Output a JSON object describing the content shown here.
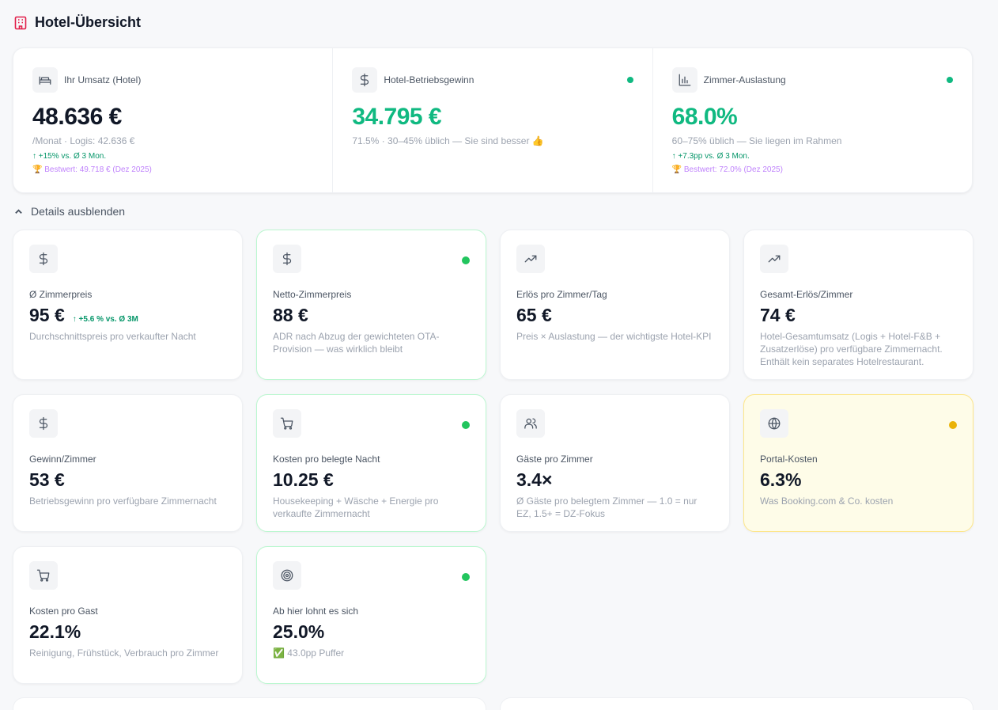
{
  "header": {
    "title": "Hotel-Übersicht",
    "icon": "hotel-icon"
  },
  "top": [
    {
      "label": "Ihr Umsatz (Hotel)",
      "value": "48.636 €",
      "sub": "/Monat · Logis: 42.636 €",
      "trend": "↑ +15% vs. Ø 3 Mon.",
      "best": "🏆 Bestwert: 49.718 € (Dez 2025)",
      "icon": "bed-icon"
    },
    {
      "label": "Hotel-Betriebsgewinn",
      "value": "34.795 €",
      "sub": "71.5% · 30–45% üblich — Sie sind besser 👍",
      "icon": "dollar-icon"
    },
    {
      "label": "Zimmer-Auslastung",
      "value": "68.0%",
      "sub": "60–75% üblich — Sie liegen im Rahmen",
      "trend": "↑ +7.3pp vs. Ø 3 Mon.",
      "best": "🏆 Bestwert: 72.0% (Dez 2025)",
      "icon": "bar-chart-icon"
    }
  ],
  "toggle": {
    "label": "Details ausblenden"
  },
  "cards": [
    {
      "label": "Ø Zimmerpreis",
      "value": "95 €",
      "trend": "↑ +5.6 % vs. Ø 3M",
      "desc": "Durchschnittspreis pro verkaufter Nacht",
      "icon": "dollar-icon"
    },
    {
      "label": "Netto-Zimmerpreis",
      "value": "88 €",
      "desc": "ADR nach Abzug der gewichteten OTA-Provision — was wirklich bleibt",
      "icon": "dollar-icon"
    },
    {
      "label": "Erlös pro Zimmer/Tag",
      "value": "65 €",
      "desc": "Preis × Auslastung — der wichtigste Hotel-KPI",
      "icon": "trending-up-icon"
    },
    {
      "label": "Gesamt-Erlös/Zimmer",
      "value": "74 €",
      "desc": "Hotel-Gesamtumsatz (Logis + Hotel-F&B + Zusatzerlöse) pro verfügbare Zimmernacht. Enthält kein separates Hotelrestaurant.",
      "icon": "trending-up-icon"
    },
    {
      "label": "Gewinn/Zimmer",
      "value": "53 €",
      "desc": "Betriebsgewinn pro verfügbare Zimmernacht",
      "icon": "dollar-icon"
    },
    {
      "label": "Kosten pro belegte Nacht",
      "value": "10.25 €",
      "desc": "Housekeeping + Wäsche + Energie pro verkaufte Zimmernacht",
      "icon": "cart-icon"
    },
    {
      "label": "Gäste pro Zimmer",
      "value": "3.4×",
      "desc": "Ø Gäste pro belegtem Zimmer — 1.0 = nur EZ, 1.5+ = DZ-Fokus",
      "icon": "users-icon"
    },
    {
      "label": "Portal-Kosten",
      "value": "6.3%",
      "desc": "Was Booking.com & Co. kosten",
      "icon": "globe-icon"
    },
    {
      "label": "Kosten pro Gast",
      "value": "22.1%",
      "desc": "Reinigung, Frühstück, Verbrauch pro Zimmer",
      "icon": "cart-icon"
    },
    {
      "label": "Ab hier lohnt es sich",
      "value": "25.0%",
      "desc": "✅ 43.0pp Puffer",
      "icon": "target-icon"
    }
  ],
  "colors": {
    "accent_green": "#10b981",
    "status_green": "#22c55e",
    "status_yellow": "#eab308",
    "best_purple": "#c084fc",
    "brand_red": "#e11d48"
  }
}
